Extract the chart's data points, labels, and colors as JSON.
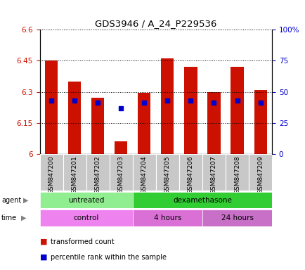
{
  "title": "GDS3946 / A_24_P229536",
  "samples": [
    "GSM847200",
    "GSM847201",
    "GSM847202",
    "GSM847203",
    "GSM847204",
    "GSM847205",
    "GSM847206",
    "GSM847207",
    "GSM847208",
    "GSM847209"
  ],
  "transformed_count": [
    6.45,
    6.35,
    6.27,
    6.06,
    6.295,
    6.46,
    6.42,
    6.3,
    6.42,
    6.31
  ],
  "ylim": [
    6.0,
    6.6
  ],
  "yticks_left": [
    6.0,
    6.15,
    6.3,
    6.45,
    6.6
  ],
  "ytick_labels_left": [
    "6",
    "6.15",
    "6.3",
    "6.45",
    "6.6"
  ],
  "right_ytick_positions": [
    0,
    25,
    50,
    75,
    100
  ],
  "ytick_labels_right": [
    "0",
    "25",
    "50",
    "75",
    "100%"
  ],
  "agent_groups": [
    {
      "label": "untreated",
      "start": 0,
      "end": 4,
      "color": "#90ee90"
    },
    {
      "label": "dexamethasone",
      "start": 4,
      "end": 10,
      "color": "#32cd32"
    }
  ],
  "time_groups": [
    {
      "label": "control",
      "start": 0,
      "end": 4,
      "color": "#ee82ee"
    },
    {
      "label": "4 hours",
      "start": 4,
      "end": 7,
      "color": "#da70d6"
    },
    {
      "label": "24 hours",
      "start": 7,
      "end": 10,
      "color": "#c870c8"
    }
  ],
  "bar_color": "#cc1100",
  "dot_color": "#0000cc",
  "bar_width": 0.55,
  "ybase": 6.0,
  "right_ylim": [
    0,
    100
  ],
  "percentile_as_right_scale": [
    43,
    43,
    41,
    37,
    41,
    43,
    43,
    41,
    43,
    41
  ],
  "legend_items": [
    {
      "color": "#cc1100",
      "label": "transformed count"
    },
    {
      "color": "#0000cc",
      "label": "percentile rank within the sample"
    }
  ],
  "tick_label_color_left": "#cc1100",
  "tick_label_color_right": "#0000cc",
  "label_bg_color": "#c8c8c8"
}
